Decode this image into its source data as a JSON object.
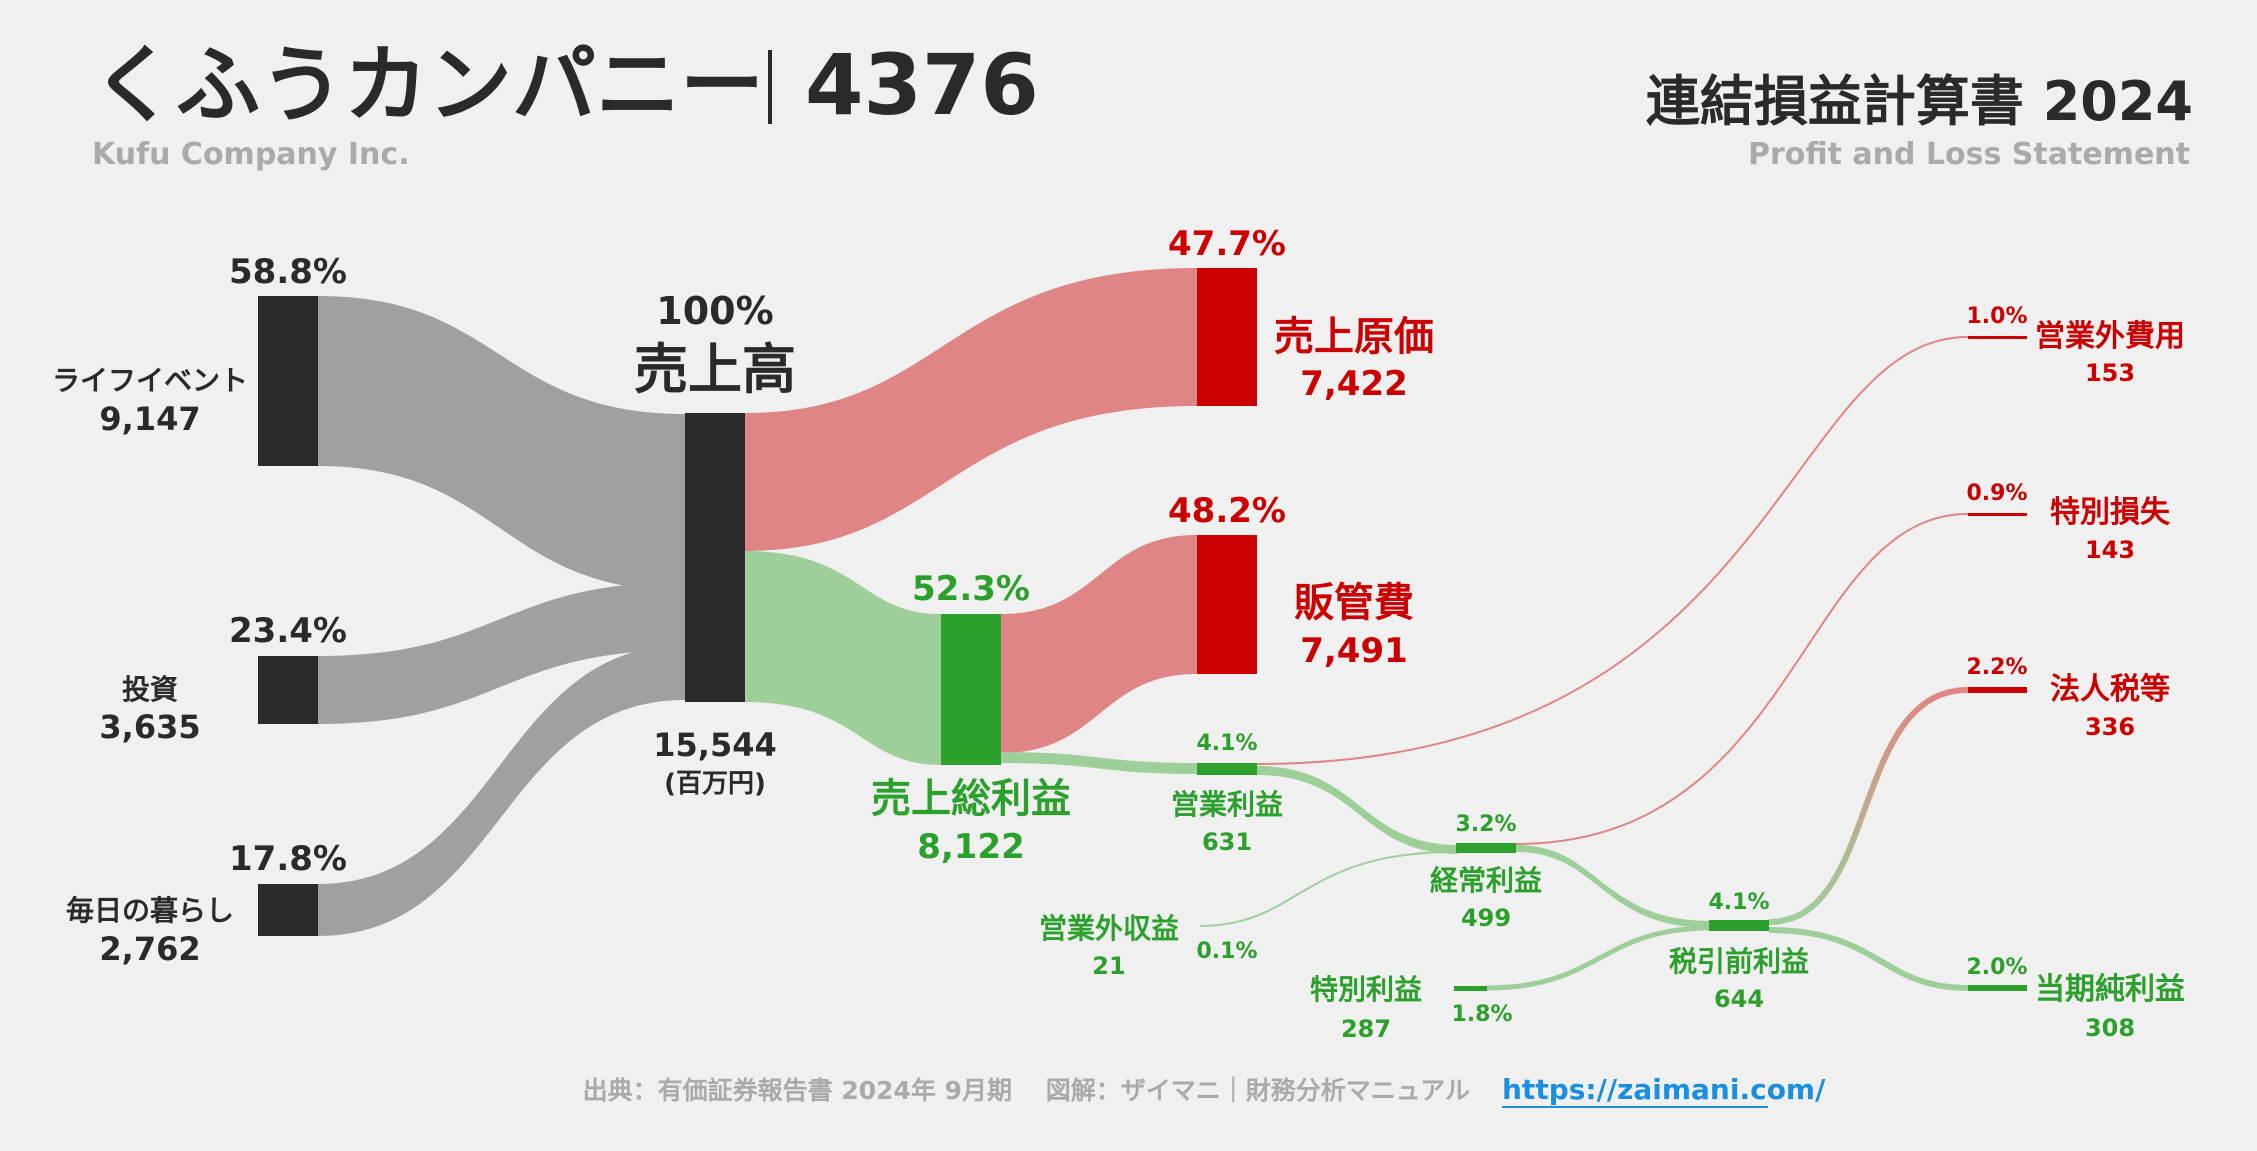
{
  "header": {
    "company_name_ja": "くふうカンパニー",
    "separator": "｜",
    "ticker": "4376",
    "company_name_en": "Kufu Company Inc.",
    "statement_title_ja": "連結損益計算書 2024",
    "statement_title_en": "Profit and Loss Statement"
  },
  "footer": {
    "source": "出典：有価証券報告書 2024年 9月期　 図解：ザイマニ｜財務分析マニュアル",
    "url": "https://zaimani.com/"
  },
  "colors": {
    "background": "#f0f0f0",
    "revenue": "#2a2a2a",
    "segment_flow": "#a0a0a0",
    "cost": "#cc0000",
    "cost_flow": "#e08585",
    "profit": "#2ca02c",
    "profit_flow": "#9ecf9a",
    "title_text": "#2a2a2a",
    "subtitle_text": "#aaaaaa",
    "link": "#1a8fe0"
  },
  "chart_data": {
    "type": "sankey",
    "unit": "(百万円)",
    "segments": [
      {
        "name": "ライフイベント",
        "value": "9,147",
        "pct": "58.8%"
      },
      {
        "name": "投資",
        "value": "3,635",
        "pct": "23.4%"
      },
      {
        "name": "毎日の暮らし",
        "value": "2,762",
        "pct": "17.8%"
      }
    ],
    "revenue": {
      "name": "売上高",
      "value": "15,544",
      "pct": "100%"
    },
    "cogs": {
      "name": "売上原価",
      "value": "7,422",
      "pct": "47.7%"
    },
    "gross_profit": {
      "name": "売上総利益",
      "value": "8,122",
      "pct": "52.3%"
    },
    "sga": {
      "name": "販管費",
      "value": "7,491",
      "pct": "48.2%"
    },
    "operating_profit": {
      "name": "営業利益",
      "value": "631",
      "pct": "4.1%"
    },
    "non_op_income": {
      "name": "営業外収益",
      "value": "21",
      "pct": "0.1%"
    },
    "non_op_expense": {
      "name": "営業外費用",
      "value": "153",
      "pct": "1.0%"
    },
    "ordinary_profit": {
      "name": "経常利益",
      "value": "499",
      "pct": "3.2%"
    },
    "extraordinary_income": {
      "name": "特別利益",
      "value": "287",
      "pct": "1.8%"
    },
    "extraordinary_loss": {
      "name": "特別損失",
      "value": "143",
      "pct": "0.9%"
    },
    "pretax_profit": {
      "name": "税引前利益",
      "value": "644",
      "pct": "4.1%"
    },
    "income_tax": {
      "name": "法人税等",
      "value": "336",
      "pct": "2.2%"
    },
    "net_profit": {
      "name": "当期純利益",
      "value": "308",
      "pct": "2.0%"
    }
  }
}
